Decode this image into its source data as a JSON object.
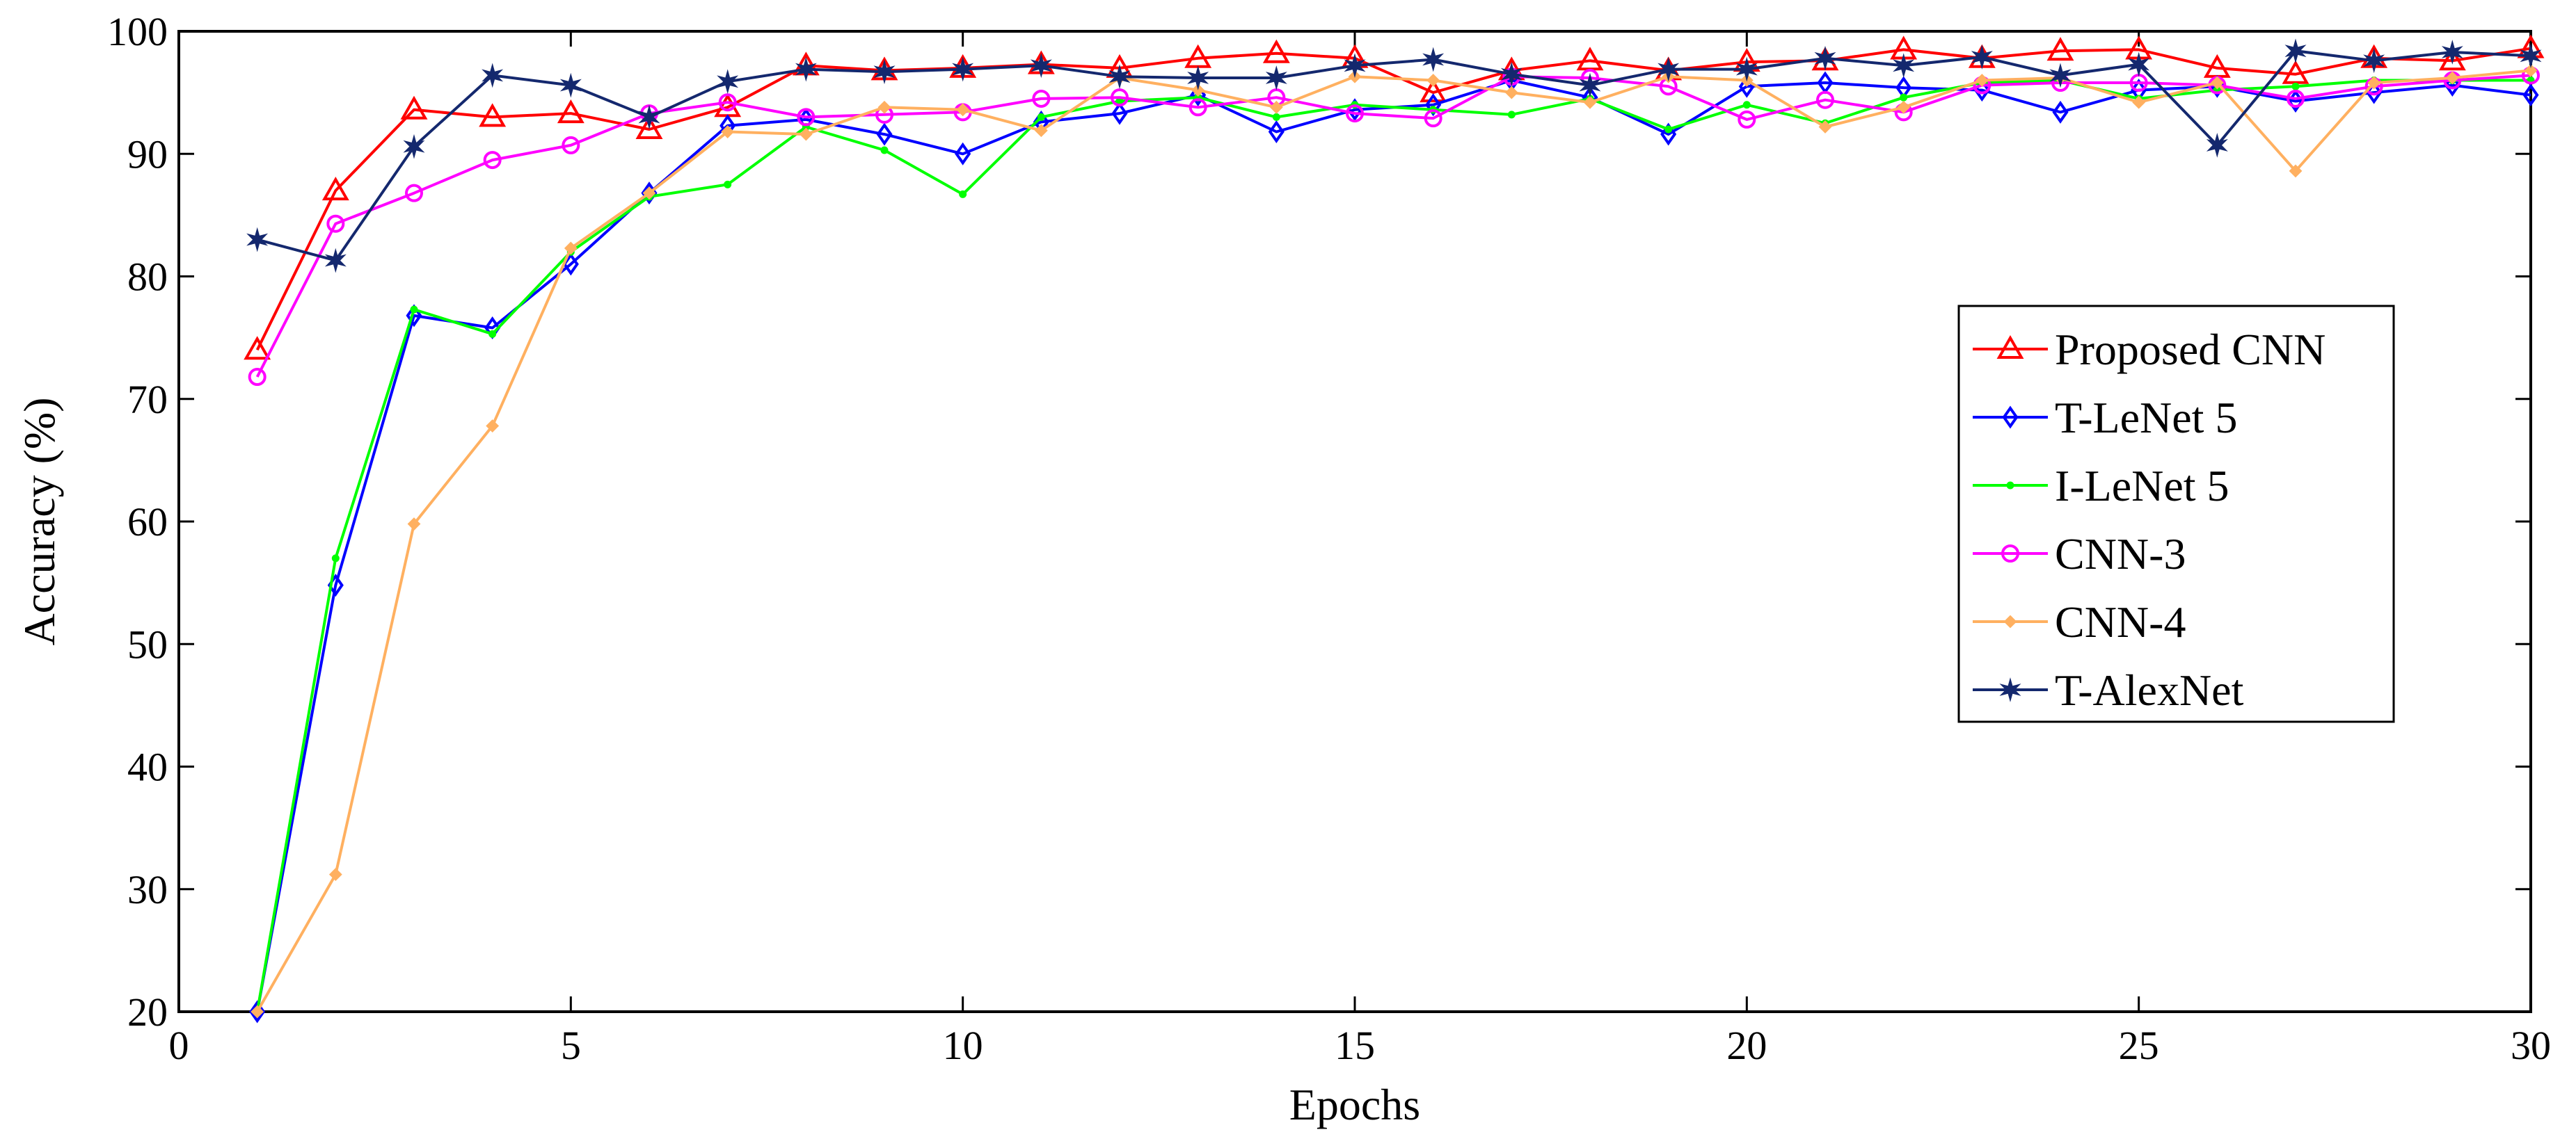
{
  "chart_data": {
    "type": "line",
    "title": "",
    "xlabel": "Epochs",
    "ylabel": "Accuracy (%)",
    "xlim": [
      0,
      30
    ],
    "ylim": [
      20,
      100
    ],
    "xticks": [
      0,
      5,
      10,
      15,
      20,
      25,
      30
    ],
    "yticks": [
      20,
      30,
      40,
      50,
      60,
      70,
      80,
      90,
      100
    ],
    "grid": false,
    "legend_position": "center-right",
    "x": [
      1,
      2,
      3,
      4,
      5,
      6,
      7,
      8,
      9,
      10,
      11,
      12,
      13,
      14,
      15,
      16,
      17,
      18,
      19,
      20,
      21,
      22,
      23,
      24,
      25,
      26,
      27,
      28,
      29,
      30
    ],
    "series": [
      {
        "name": "Proposed CNN",
        "color": "#ff0000",
        "marker": "triangle",
        "values": [
          74,
          87,
          93.6,
          93,
          93.3,
          92,
          93.8,
          97.2,
          96.8,
          97,
          97.3,
          97,
          97.8,
          98.2,
          97.8,
          95,
          96.8,
          97.6,
          96.8,
          97.5,
          97.6,
          98.5,
          97.8,
          98.4,
          98.5,
          97,
          96.5,
          97.8,
          97.6,
          98.6
        ]
      },
      {
        "name": "T-LeNet 5",
        "color": "#0000ff",
        "marker": "diamond",
        "values": [
          20,
          54.8,
          76.8,
          75.8,
          81,
          86.8,
          92.3,
          92.8,
          91.6,
          90,
          92.6,
          93.3,
          94.8,
          91.8,
          93.6,
          94,
          96,
          94.6,
          91.6,
          95.5,
          95.8,
          95.4,
          95.2,
          93.4,
          95.2,
          95.5,
          94.3,
          95,
          95.6,
          94.8
        ]
      },
      {
        "name": "I-LeNet 5",
        "color": "#00ff00",
        "marker": "dot",
        "values": [
          20,
          57,
          77.3,
          75.3,
          82,
          86.5,
          87.5,
          92.2,
          90.3,
          86.7,
          93,
          94.3,
          94.6,
          93,
          94,
          93.6,
          93.2,
          94.5,
          92,
          94,
          92.5,
          94.6,
          95.8,
          96,
          94.5,
          95.2,
          95.5,
          96,
          96,
          96
        ]
      },
      {
        "name": "CNN-3",
        "color": "#ff00ff",
        "marker": "circle",
        "values": [
          71.8,
          84.3,
          86.8,
          89.5,
          90.7,
          93.3,
          94.2,
          93,
          93.2,
          93.4,
          94.5,
          94.6,
          93.8,
          94.6,
          93.3,
          92.9,
          96.3,
          96.2,
          95.5,
          92.8,
          94.4,
          93.4,
          95.6,
          95.8,
          95.8,
          95.6,
          94.5,
          95.5,
          96,
          96.4
        ]
      },
      {
        "name": "CNN-4",
        "color": "#ffb060",
        "marker": "small-diamond",
        "values": [
          20,
          31.2,
          59.8,
          67.8,
          82.3,
          86.8,
          91.8,
          91.6,
          93.8,
          93.6,
          91.9,
          96.2,
          95.2,
          93.8,
          96.3,
          96,
          95,
          94.2,
          96.3,
          96,
          92.2,
          93.8,
          96,
          96.2,
          94.2,
          95.8,
          88.6,
          95.8,
          96.2,
          96.8
        ]
      },
      {
        "name": "T-AlexNet",
        "color": "#14286e",
        "marker": "star",
        "values": [
          83,
          81.3,
          90.6,
          96.4,
          95.6,
          93,
          95.9,
          96.9,
          96.7,
          96.9,
          97.2,
          96.3,
          96.2,
          96.2,
          97.2,
          97.7,
          96.5,
          95.6,
          96.9,
          96.9,
          97.8,
          97.2,
          97.9,
          96.4,
          97.3,
          90.7,
          98.4,
          97.6,
          98.3,
          98
        ]
      }
    ]
  }
}
